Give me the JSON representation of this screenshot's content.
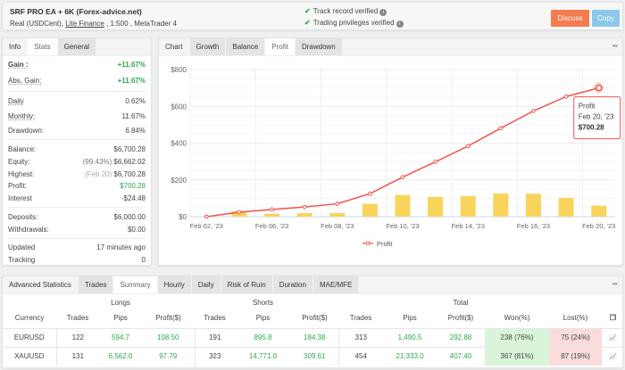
{
  "header": {
    "title": "SRF PRO EA + 6K (Forex-advice.net)",
    "account_type": "Real (USDCent), ",
    "broker": "Lite Finance",
    "details": " , 1:500 , MetaTrader 4",
    "verified": [
      "Track record verified",
      "Trading privileges verified"
    ],
    "discuss_label": "Discuss",
    "copy_label": "Copy"
  },
  "left": {
    "tabs": [
      "Info",
      "Stats",
      "General"
    ],
    "active_tab": "Stats",
    "gain": {
      "label": "Gain :",
      "value": "+11.67%"
    },
    "abs_gain": {
      "label": "Abs. Gain:",
      "value": "+11.67%"
    },
    "daily": {
      "label": "Daily",
      "value": "0.62%"
    },
    "monthly": {
      "label": "Monthly:",
      "value": "11.67%"
    },
    "drawdown": {
      "label": "Drawdown:",
      "value": "6.84%"
    },
    "balance": {
      "label": "Balance:",
      "value": "$6,700.28"
    },
    "equity": {
      "label": "Equity:",
      "note": "(99.43%)",
      "value": "$6,662.02"
    },
    "highest": {
      "label": "Highest:",
      "note": "(Feb 20)",
      "value": "$6,700.28"
    },
    "profit": {
      "label": "Profit:",
      "value": "$700.28"
    },
    "interest": {
      "label": "Interest",
      "value": "-$24.48"
    },
    "deposits": {
      "label": "Deposits:",
      "value": "$6,000.00"
    },
    "withdrawals": {
      "label": "Withdrawals:",
      "value": "$0.00"
    },
    "updated": {
      "label": "Updated",
      "value": "17 minutes ago"
    },
    "tracking": {
      "label": "Tracking",
      "value": "0"
    }
  },
  "chart_panel": {
    "tabs": [
      "Chart",
      "Growth",
      "Balance",
      "Profit",
      "Drawdown"
    ],
    "active_tab": "Profit"
  },
  "chart_data": {
    "type": "line+bar",
    "ylim": [
      0,
      800
    ],
    "yticks": [
      "$0",
      "$200",
      "$400",
      "$600",
      "$800"
    ],
    "ytick_values": [
      0,
      200,
      400,
      600,
      800
    ],
    "x_labels": [
      "Feb 02, '23",
      "",
      "Feb 06, '23",
      "",
      "Feb 08, '23",
      "",
      "Feb 10, '23",
      "",
      "Feb 14, '23",
      "",
      "Feb 16, '23",
      "",
      "Feb 20, '23"
    ],
    "series": [
      {
        "name": "Profit",
        "type": "line",
        "color": "#f0544f",
        "values": [
          0,
          24,
          39,
          53,
          70,
          125,
          215,
          298,
          384,
          481,
          575,
          653,
          700
        ]
      },
      {
        "type": "bar",
        "color": "#f9d45c",
        "values": [
          0,
          29,
          16,
          19,
          19,
          70,
          118,
          107,
          112,
          126,
          125,
          102,
          60
        ]
      }
    ],
    "legend": "bottom",
    "grid": true,
    "tooltip": {
      "series": "Profit",
      "date": "Feb 20, '23",
      "value": "$700.28"
    }
  },
  "advanced": {
    "title": "Advanced Statistics",
    "tabs": [
      "Trades",
      "Summary",
      "Hourly",
      "Daily",
      "Risk of Ruin",
      "Duration",
      "MAE/MFE"
    ],
    "active_tab": "Summary",
    "groups": [
      "Longs",
      "Shorts",
      "Total"
    ],
    "columns": [
      "Currency",
      "Trades",
      "Pips",
      "Profit($)",
      "Trades",
      "Pips",
      "Profit($)",
      "Trades",
      "Pips",
      "Profit($)",
      "Won(%)",
      "Lost(%)"
    ],
    "rows": [
      [
        "EURUSD",
        "122",
        "594.7",
        "108.50",
        "191",
        "895.8",
        "184.38",
        "313",
        "1,490.5",
        "292.88",
        "238 (76%)",
        "75 (24%)"
      ],
      [
        "XAUUSD",
        "131",
        "6,562.0",
        "97.79",
        "323",
        "14,771.0",
        "309.61",
        "454",
        "21,333.0",
        "407.40",
        "367 (81%)",
        "87 (19%)"
      ]
    ]
  }
}
